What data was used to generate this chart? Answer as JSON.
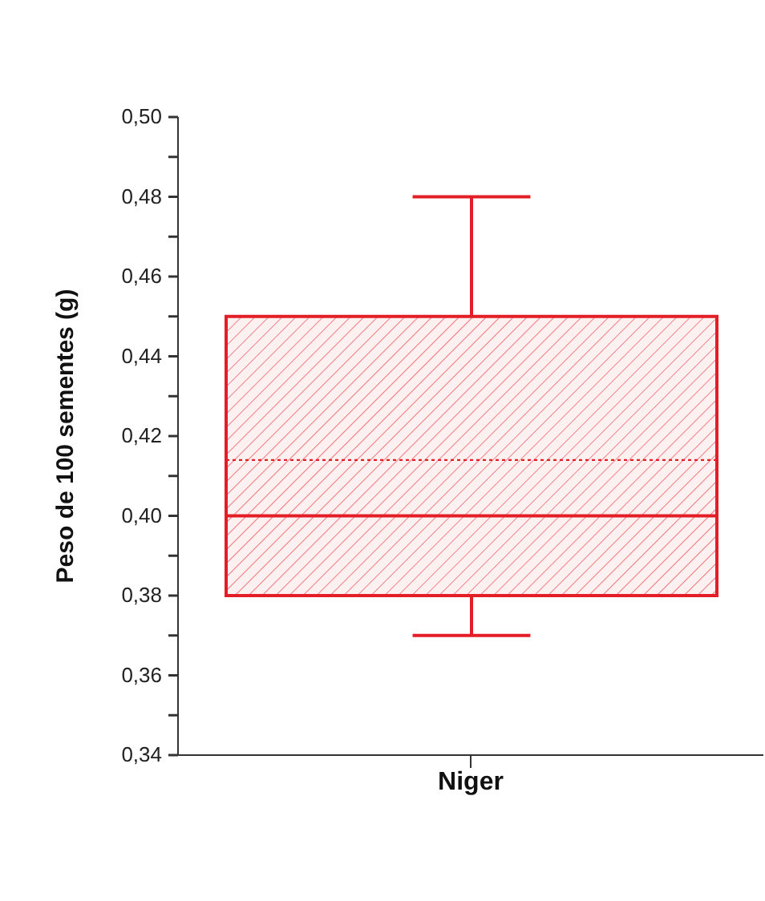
{
  "chart_data": {
    "type": "box",
    "ylabel": "Peso de 100 sementes (g)",
    "categories": [
      "Niger"
    ],
    "color": "#e31e26",
    "boxes": [
      {
        "low": 0.37,
        "q1": 0.38,
        "median": 0.4,
        "q3": 0.45,
        "high": 0.48,
        "mean": 0.414
      }
    ],
    "ylim": [
      0.34,
      0.5
    ],
    "yticks": [
      {
        "value": 0.34,
        "label": "0,34"
      },
      {
        "value": 0.36,
        "label": "0,36"
      },
      {
        "value": 0.38,
        "label": "0,38"
      },
      {
        "value": 0.4,
        "label": "0,40"
      },
      {
        "value": 0.42,
        "label": "0,42"
      },
      {
        "value": 0.44,
        "label": "0,44"
      },
      {
        "value": 0.46,
        "label": "0,46"
      },
      {
        "value": 0.48,
        "label": "0,48"
      },
      {
        "value": 0.5,
        "label": "0,50"
      }
    ]
  }
}
